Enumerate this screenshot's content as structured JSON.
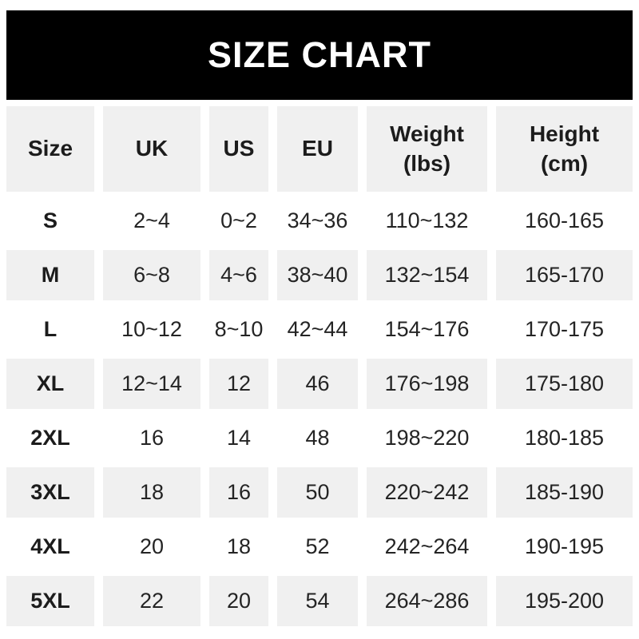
{
  "banner": {
    "title": "SIZE CHART",
    "bg_color": "#000000",
    "text_color": "#ffffff"
  },
  "colors": {
    "page_bg": "#ffffff",
    "row_alt_bg": "#f0f0f0",
    "body_text": "#242424",
    "header_text": "#1c1c1c"
  },
  "table": {
    "headers": [
      {
        "label": "Size",
        "sub": ""
      },
      {
        "label": "UK",
        "sub": ""
      },
      {
        "label": "US",
        "sub": ""
      },
      {
        "label": "EU",
        "sub": ""
      },
      {
        "label": "Weight",
        "sub": "(lbs)"
      },
      {
        "label": "Height",
        "sub": "(cm)"
      }
    ]
  },
  "chart_data": {
    "type": "table",
    "title": "SIZE CHART",
    "columns": [
      "Size",
      "UK",
      "US",
      "EU",
      "Weight (lbs)",
      "Height (cm)"
    ],
    "rows": [
      [
        "S",
        "2~4",
        "0~2",
        "34~36",
        "110~132",
        "160-165"
      ],
      [
        "M",
        "6~8",
        "4~6",
        "38~40",
        "132~154",
        "165-170"
      ],
      [
        "L",
        "10~12",
        "8~10",
        "42~44",
        "154~176",
        "170-175"
      ],
      [
        "XL",
        "12~14",
        "12",
        "46",
        "176~198",
        "175-180"
      ],
      [
        "2XL",
        "16",
        "14",
        "48",
        "198~220",
        "180-185"
      ],
      [
        "3XL",
        "18",
        "16",
        "50",
        "220~242",
        "185-190"
      ],
      [
        "4XL",
        "20",
        "18",
        "52",
        "242~264",
        "190-195"
      ],
      [
        "5XL",
        "22",
        "20",
        "54",
        "264~286",
        "195-200"
      ]
    ],
    "layout": {
      "row_striping": "header and even rows (M, XL, 3XL, 5XL) light gray #f0f0f0, others white",
      "grid": "no visible borders; white gaps between cells"
    }
  }
}
